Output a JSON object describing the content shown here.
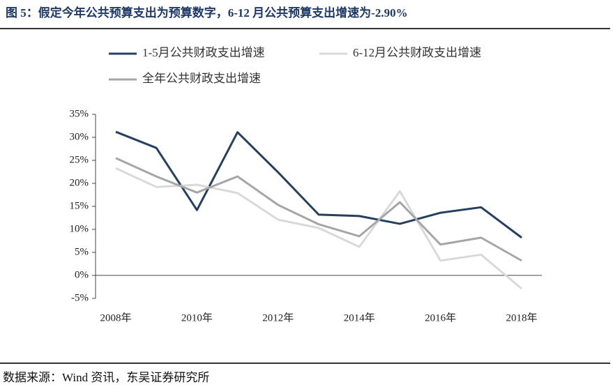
{
  "chart_data": {
    "type": "line",
    "title": "图 5：假定今年公共预算支出为预算数字，6-12 月公共预算支出增速为-2.90%",
    "source": "数据来源：Wind 资讯，东吴证券研究所",
    "categories": [
      "2008年",
      null,
      "2010年",
      null,
      "2012年",
      null,
      "2014年",
      null,
      "2016年",
      null,
      "2018年"
    ],
    "series": [
      {
        "name": "1-5月公共财政支出增速",
        "color": "#243f60",
        "values": [
          31.2,
          27.7,
          14.2,
          31.1,
          22.4,
          13.2,
          12.9,
          11.2,
          13.6,
          14.8,
          8.2
        ]
      },
      {
        "name": "6-12月公共财政支出增速",
        "color": "#d9d9d9",
        "values": [
          23.3,
          19.2,
          19.7,
          17.9,
          12.1,
          10.3,
          6.2,
          18.3,
          3.2,
          4.5,
          -2.9
        ]
      },
      {
        "name": "全年公共财政支出增速",
        "color": "#a6a6a6",
        "values": [
          25.5,
          21.5,
          18.0,
          21.5,
          15.3,
          11.1,
          8.5,
          15.9,
          6.7,
          8.2,
          3.2
        ]
      }
    ],
    "ylim": [
      -5,
      35
    ],
    "yticks": [
      {
        "value": -5,
        "label": "-5%"
      },
      {
        "value": 0,
        "label": "0%"
      },
      {
        "value": 5,
        "label": "5%"
      },
      {
        "value": 10,
        "label": "10%"
      },
      {
        "value": 15,
        "label": "15%"
      },
      {
        "value": 20,
        "label": "20%"
      },
      {
        "value": 25,
        "label": "25%"
      },
      {
        "value": 30,
        "label": "30%"
      },
      {
        "value": 35,
        "label": "35%"
      }
    ],
    "grid": false
  }
}
